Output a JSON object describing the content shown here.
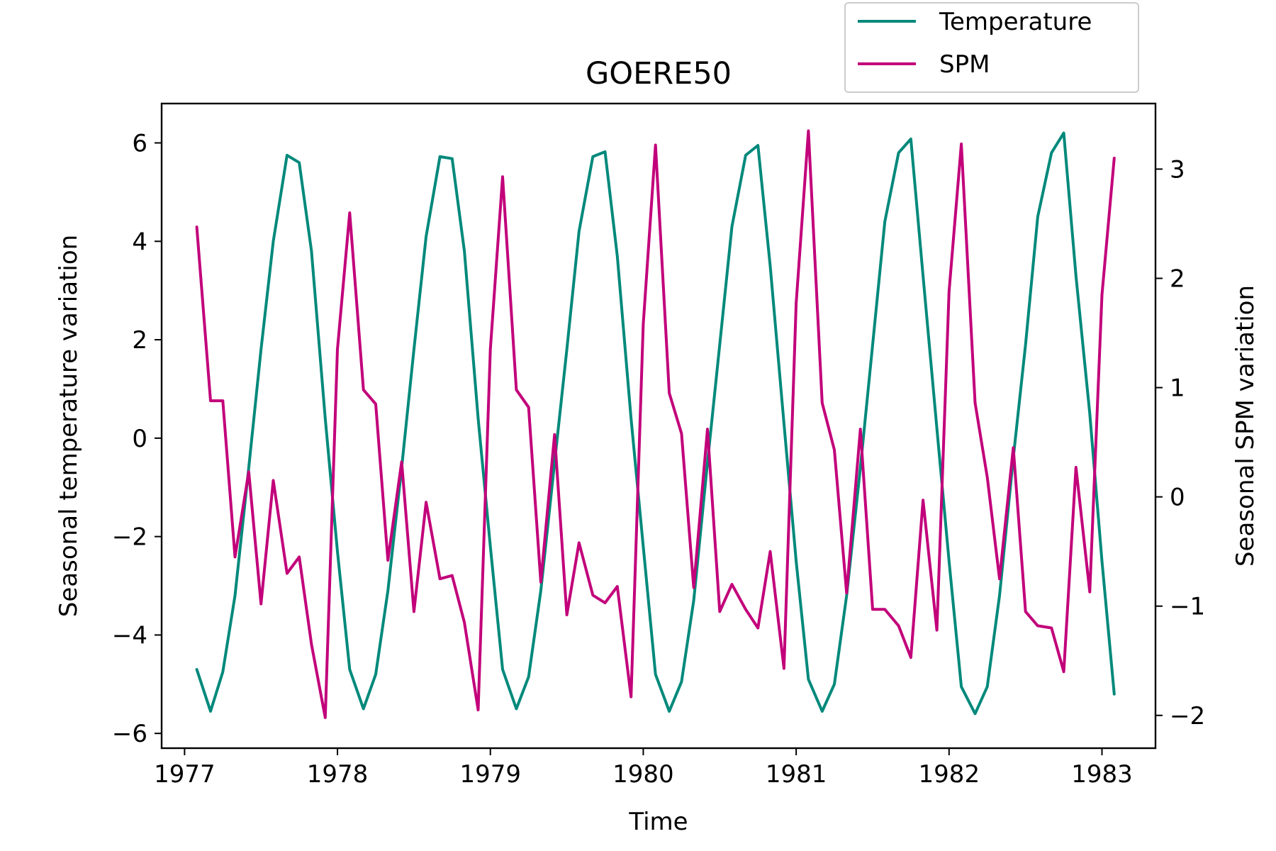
{
  "chart_data": {
    "type": "line",
    "title": "GOERE50",
    "xlabel": "Time",
    "ylabel_left": "Seasonal temperature variation",
    "ylabel_right": "Seasonal SPM variation",
    "xlim": [
      1976.85,
      1983.35
    ],
    "ylim_left": [
      -6.3,
      6.8
    ],
    "ylim_right": [
      -2.3,
      3.6
    ],
    "x_ticks": [
      1977,
      1978,
      1979,
      1980,
      1981,
      1982,
      1983
    ],
    "x_tick_labels": [
      "1977",
      "1978",
      "1979",
      "1980",
      "1981",
      "1982",
      "1983"
    ],
    "y_left_ticks": [
      -6,
      -4,
      -2,
      0,
      2,
      4,
      6
    ],
    "y_left_tick_labels": [
      "−6",
      "−4",
      "−2",
      "0",
      "2",
      "4",
      "6"
    ],
    "y_right_ticks": [
      -2,
      -1,
      0,
      1,
      2,
      3
    ],
    "y_right_tick_labels": [
      "−2",
      "−1",
      "0",
      "1",
      "2",
      "3"
    ],
    "grid": false,
    "legend_position": "top-right",
    "series": [
      {
        "name": "Temperature",
        "axis": "left",
        "color": "#00897b",
        "x": [
          1977.08,
          1977.17,
          1977.25,
          1977.33,
          1977.42,
          1977.5,
          1977.58,
          1977.67,
          1977.75,
          1977.83,
          1977.92,
          1978.0,
          1978.08,
          1978.17,
          1978.25,
          1978.33,
          1978.42,
          1978.5,
          1978.58,
          1978.67,
          1978.75,
          1978.83,
          1978.92,
          1979.0,
          1979.08,
          1979.17,
          1979.25,
          1979.33,
          1979.42,
          1979.5,
          1979.58,
          1979.67,
          1979.75,
          1979.83,
          1979.92,
          1980.0,
          1980.08,
          1980.17,
          1980.25,
          1980.33,
          1980.42,
          1980.5,
          1980.58,
          1980.67,
          1980.75,
          1980.83,
          1980.92,
          1981.0,
          1981.08,
          1981.17,
          1981.25,
          1981.33,
          1981.42,
          1981.5,
          1981.58,
          1981.67,
          1981.75,
          1981.83,
          1981.92,
          1982.0,
          1982.08,
          1982.17,
          1982.25,
          1982.33,
          1982.42,
          1982.5,
          1982.58,
          1982.67,
          1982.75,
          1982.83,
          1982.92,
          1983.0,
          1983.08
        ],
        "values": [
          -4.7,
          -5.55,
          -4.75,
          -3.2,
          -0.6,
          1.8,
          4.0,
          5.75,
          5.6,
          3.8,
          0.4,
          -2.3,
          -4.7,
          -5.5,
          -4.8,
          -3.1,
          -0.6,
          1.8,
          4.1,
          5.72,
          5.68,
          3.8,
          0.4,
          -2.2,
          -4.7,
          -5.5,
          -4.85,
          -3.1,
          -0.5,
          1.8,
          4.2,
          5.72,
          5.82,
          3.7,
          0.4,
          -2.2,
          -4.8,
          -5.55,
          -4.95,
          -3.3,
          -0.5,
          1.9,
          4.3,
          5.75,
          5.95,
          3.5,
          0.3,
          -2.5,
          -4.9,
          -5.55,
          -5.0,
          -3.2,
          -0.6,
          1.9,
          4.4,
          5.8,
          6.08,
          3.3,
          0.2,
          -2.5,
          -5.05,
          -5.6,
          -5.05,
          -3.2,
          -0.4,
          1.9,
          4.5,
          5.8,
          6.2,
          3.3,
          0.5,
          -2.5,
          -5.2
        ]
      },
      {
        "name": "SPM",
        "axis": "right",
        "color": "#c2007a",
        "x": [
          1977.08,
          1977.17,
          1977.25,
          1977.33,
          1977.42,
          1977.5,
          1977.58,
          1977.67,
          1977.75,
          1977.83,
          1977.92,
          1978.0,
          1978.08,
          1978.17,
          1978.25,
          1978.33,
          1978.42,
          1978.5,
          1978.58,
          1978.67,
          1978.75,
          1978.83,
          1978.92,
          1979.0,
          1979.08,
          1979.17,
          1979.25,
          1979.33,
          1979.42,
          1979.5,
          1979.58,
          1979.67,
          1979.75,
          1979.83,
          1979.92,
          1980.0,
          1980.08,
          1980.17,
          1980.25,
          1980.33,
          1980.42,
          1980.5,
          1980.58,
          1980.67,
          1980.75,
          1980.83,
          1980.92,
          1981.0,
          1981.08,
          1981.17,
          1981.25,
          1981.33,
          1981.42,
          1981.5,
          1981.58,
          1981.67,
          1981.75,
          1981.83,
          1981.92,
          1982.0,
          1982.08,
          1982.17,
          1982.25,
          1982.33,
          1982.42,
          1982.5,
          1982.58,
          1982.67,
          1982.75,
          1982.83,
          1982.92,
          1983.0,
          1983.08
        ],
        "values": [
          2.47,
          0.88,
          0.88,
          -0.55,
          0.23,
          -0.98,
          0.15,
          -0.7,
          -0.55,
          -1.35,
          -2.02,
          1.35,
          2.6,
          0.98,
          0.85,
          -0.58,
          0.32,
          -1.05,
          -0.05,
          -0.75,
          -0.72,
          -1.15,
          -1.95,
          1.35,
          2.93,
          0.98,
          0.82,
          -0.78,
          0.57,
          -1.08,
          -0.42,
          -0.9,
          -0.97,
          -0.82,
          -1.83,
          1.58,
          3.22,
          0.95,
          0.58,
          -0.83,
          0.62,
          -1.05,
          -0.8,
          -1.03,
          -1.2,
          -0.5,
          -1.57,
          1.77,
          3.35,
          0.86,
          0.43,
          -0.88,
          0.62,
          -1.03,
          -1.03,
          -1.18,
          -1.47,
          -0.03,
          -1.22,
          1.88,
          3.23,
          0.86,
          0.18,
          -0.75,
          0.45,
          -1.05,
          -1.18,
          -1.2,
          -1.6,
          0.27,
          -0.87,
          1.85,
          3.1
        ]
      }
    ]
  }
}
